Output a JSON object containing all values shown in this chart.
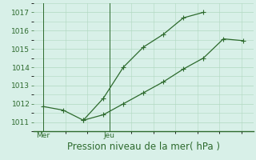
{
  "line1_x": [
    0,
    1,
    2,
    3,
    4,
    5,
    6,
    7,
    8
  ],
  "line1_y": [
    1011.85,
    1011.65,
    1011.1,
    1012.3,
    1014.0,
    1015.1,
    1015.8,
    1016.7,
    1017.0
  ],
  "line2_x": [
    2,
    3,
    4,
    5,
    6,
    7,
    8,
    9,
    10
  ],
  "line2_y": [
    1011.1,
    1011.4,
    1012.0,
    1012.6,
    1013.2,
    1013.9,
    1014.5,
    1015.55,
    1015.45
  ],
  "ylim": [
    1010.5,
    1017.5
  ],
  "yticks": [
    1011,
    1012,
    1013,
    1014,
    1015,
    1016,
    1017
  ],
  "xlim": [
    -0.5,
    10.5
  ],
  "mer_x": 0,
  "jeu_x": 3.3,
  "line_color": "#2d6a2d",
  "bg_color": "#d8f0e8",
  "grid_color": "#b0d8c0",
  "xlabel": "Pression niveau de la mer( hPa )",
  "xlabel_fontsize": 8.5,
  "tick_fontsize": 6.5,
  "marker": "P",
  "marker_size": 3,
  "line_width": 0.9
}
